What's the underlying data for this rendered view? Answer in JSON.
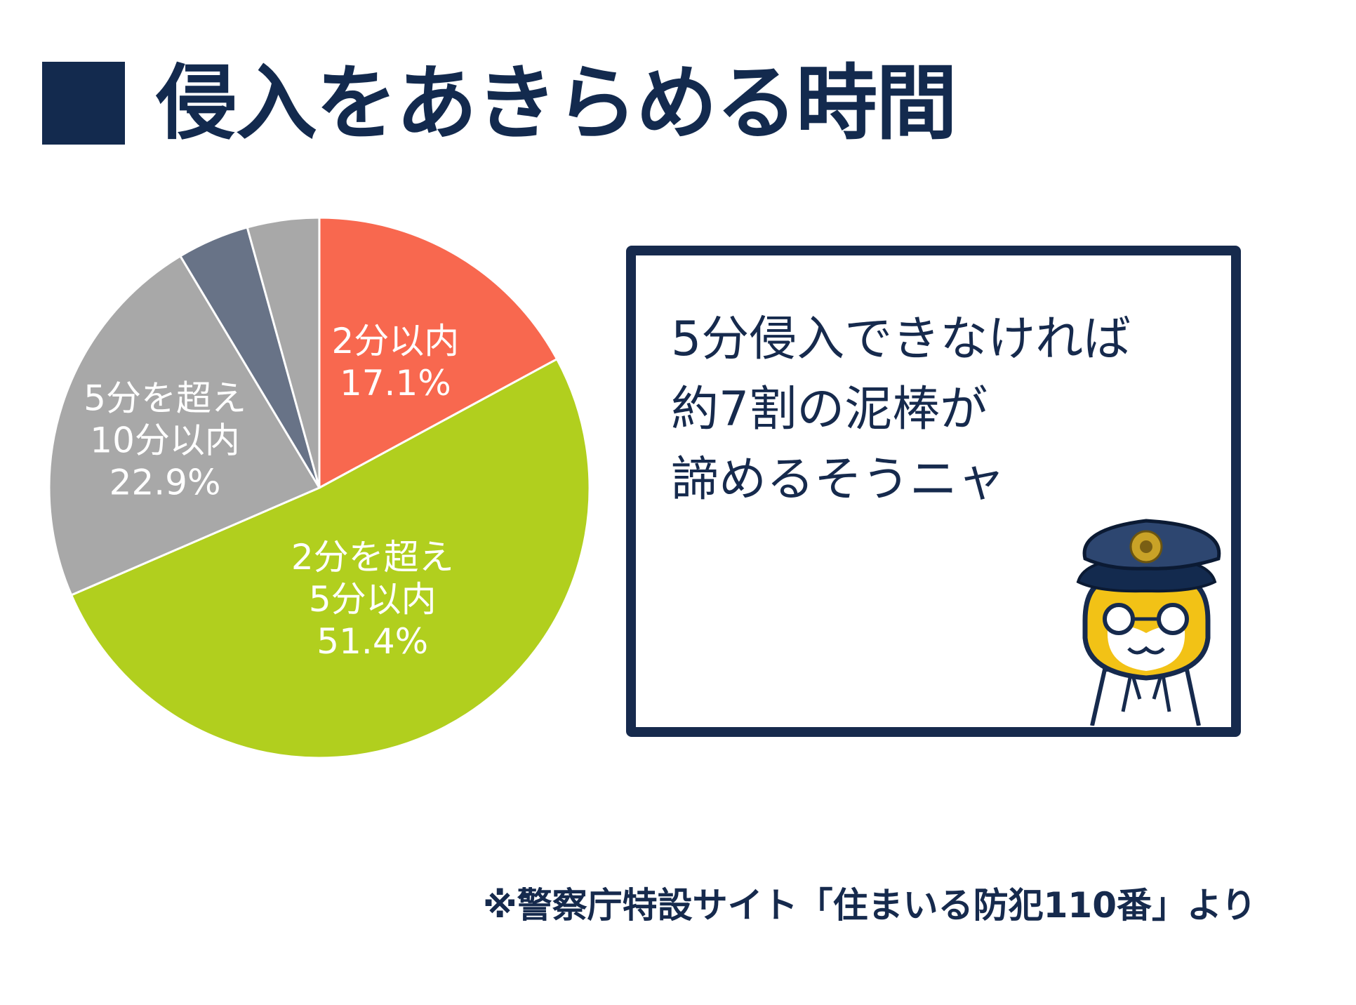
{
  "title": "侵入をあきらめる時間",
  "callout": {
    "lines": [
      "5分侵入できなければ",
      "約7割の泥棒が",
      "諦めるそうニャ"
    ]
  },
  "source": "※警察庁特設サイト「住まいる防犯110番」より",
  "chart_data": {
    "type": "pie",
    "start_angle_deg": 0,
    "direction": "clockwise",
    "slices": [
      {
        "label_lines": [
          "2分以内",
          "17.1%"
        ],
        "value": 17.1,
        "color": "#f8684f"
      },
      {
        "label_lines": [
          "2分を超え",
          "5分以内",
          "51.4%"
        ],
        "value": 51.4,
        "color": "#b1cf1e"
      },
      {
        "label_lines": [
          "5分を超え",
          "10分以内",
          "22.9%"
        ],
        "value": 22.9,
        "color": "#a8a8a8"
      },
      {
        "label_lines": [],
        "value": 4.3,
        "color": "#687387"
      },
      {
        "label_lines": [],
        "value": 4.3,
        "color": "#a8a8a8"
      }
    ]
  }
}
